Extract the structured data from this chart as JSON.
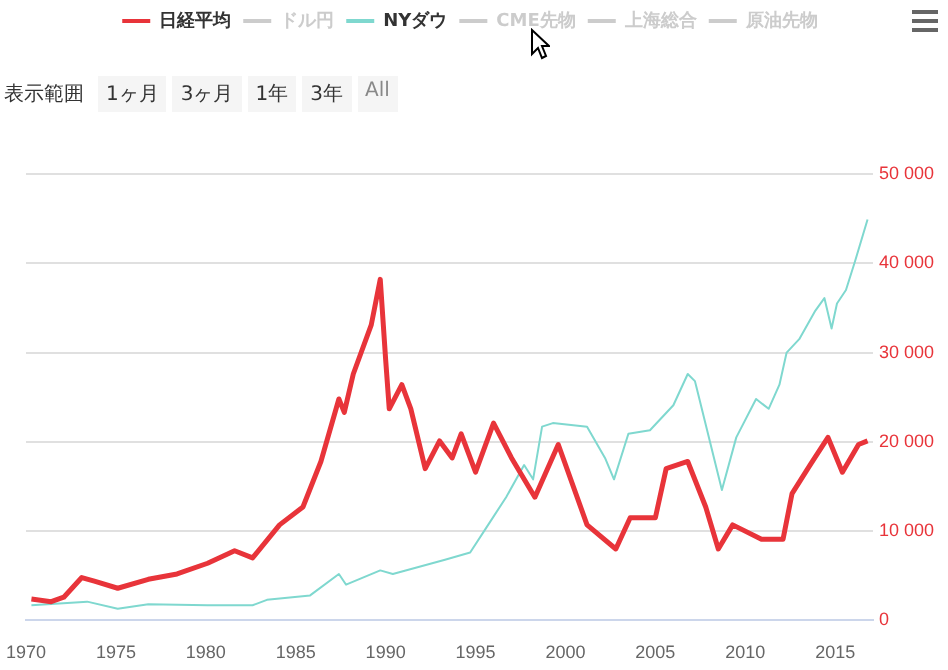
{
  "chart_data": {
    "type": "line",
    "series": [
      {
        "name": "日経平均",
        "color": "#e8343a",
        "x": [
          1970.3,
          1971.4,
          1972.1,
          1973.1,
          1973.8,
          1975.1,
          1976.8,
          1978.4,
          1980.1,
          1981.6,
          1982.6,
          1984.1,
          1985.4,
          1986.4,
          1987.4,
          1987.7,
          1988.2,
          1989.2,
          1989.7,
          1990.0,
          1990.2,
          1990.9,
          1991.4,
          1992.2,
          1993.0,
          1993.7,
          1994.2,
          1995.0,
          1996.0,
          1997.0,
          1998.3,
          1999.6,
          2001.2,
          2002.8,
          2003.6,
          2005.0,
          2005.6,
          2006.8,
          2007.8,
          2008.5,
          2009.3,
          2010.9,
          2012.1,
          2012.6,
          2013.6,
          2014.6,
          2015.4,
          2016.3,
          2016.8
        ],
        "values": [
          2400,
          2100,
          2600,
          4800,
          4400,
          3600,
          4600,
          5200,
          6400,
          7800,
          7000,
          10700,
          12700,
          17800,
          24800,
          23300,
          27600,
          33100,
          38200,
          29200,
          23700,
          26400,
          23700,
          17000,
          20100,
          18200,
          20900,
          16600,
          22100,
          18200,
          13800,
          19700,
          10700,
          8000,
          11500,
          11500,
          17000,
          17800,
          12700,
          8000,
          10700,
          9100,
          9100,
          14200,
          17400,
          20500,
          16600,
          19700,
          20100
        ]
      },
      {
        "name": "ドル円",
        "color": "#cccccc"
      },
      {
        "name": "NYダウ",
        "color": "#7fd8cf",
        "x": [
          1970.3,
          1973.4,
          1975.1,
          1976.8,
          1980.1,
          1982.6,
          1983.4,
          1985.8,
          1987.4,
          1987.8,
          1989.7,
          1990.4,
          1993.3,
          1994.7,
          1995.7,
          1996.7,
          1997.7,
          1998.2,
          1998.7,
          1999.3,
          2001.2,
          2002.2,
          2002.7,
          2003.5,
          2004.7,
          2006.0,
          2006.8,
          2007.2,
          2007.3,
          2008.7,
          2009.5,
          2010.6,
          2011.3,
          2011.9,
          2012.3,
          2013.0,
          2013.9,
          2014.4,
          2014.8,
          2015.1,
          2015.6,
          2016.1,
          2016.8
        ],
        "values": [
          1700,
          2100,
          1300,
          1800,
          1700,
          1700,
          2300,
          2800,
          5200,
          4000,
          5600,
          5200,
          6800,
          7600,
          10700,
          13800,
          17400,
          15800,
          21700,
          22100,
          21700,
          18200,
          15800,
          20900,
          21300,
          24100,
          27600,
          26800,
          26000,
          14600,
          20500,
          24800,
          23700,
          26400,
          30000,
          31500,
          34700,
          36100,
          32700,
          35500,
          37000,
          40200,
          44900
        ]
      },
      {
        "name": "CME先物",
        "color": "#cccccc"
      },
      {
        "name": "上海総合",
        "color": "#cccccc"
      },
      {
        "name": "原油先物",
        "color": "#cccccc"
      }
    ],
    "xlim": [
      1970,
      2017.1
    ],
    "xticks": [
      1970,
      1975,
      1980,
      1985,
      1990,
      1995,
      2000,
      2005,
      2010,
      2015
    ],
    "ylim": [
      0,
      50000
    ],
    "yticks": [
      0,
      {
        "value": 10000,
        "label": "10 000"
      },
      {
        "value": 20000,
        "label": "20 000"
      },
      {
        "value": 30000,
        "label": "30 000"
      },
      {
        "value": 40000,
        "label": "40 000"
      },
      {
        "value": 50000,
        "label": "50 000"
      }
    ],
    "grid": "y",
    "legend": "top",
    "marker": "none",
    "line_style": "solid",
    "annotations": [
      "表示範囲",
      "1ヶ月",
      "3ヶ月",
      "1年",
      "3年",
      "All"
    ]
  }
}
